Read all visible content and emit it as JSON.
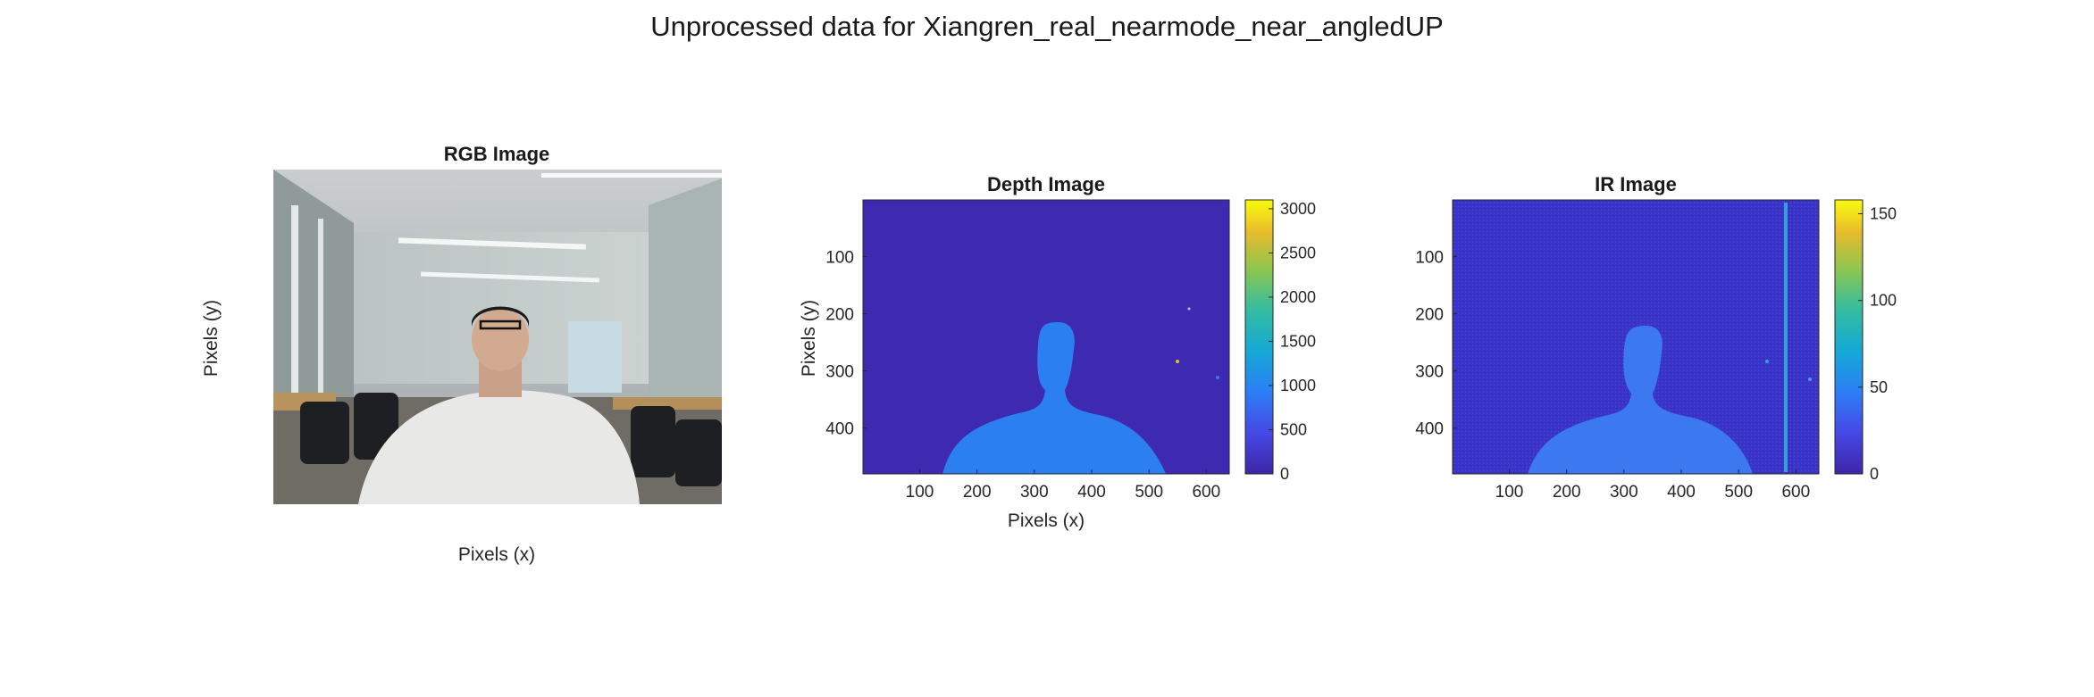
{
  "figure_title": "Unprocessed data for Xiangren_real_nearmode_near_angledUP",
  "chart_data": [
    {
      "type": "image",
      "title": "RGB Image",
      "xlabel": "Pixels (x)",
      "ylabel": "Pixels (y)",
      "content": "photo of a person looking upward in an office room with chairs and ceiling lights"
    },
    {
      "type": "heatmap",
      "title": "Depth Image",
      "xlabel": "Pixels (x)",
      "ylabel": "Pixels (y)",
      "xlim": [
        1,
        640
      ],
      "ylim": [
        1,
        480
      ],
      "xticks": [
        100,
        200,
        300,
        400,
        500,
        600
      ],
      "yticks": [
        100,
        200,
        300,
        400
      ],
      "colorbar": {
        "clim": [
          0,
          3100
        ],
        "ticks": [
          0,
          500,
          1000,
          1500,
          2000,
          2500,
          3000
        ],
        "colormap": "parula"
      },
      "background_value": 0,
      "subject_value": 1000,
      "colors": {
        "background": "#3e2ab0",
        "subject": "#2b7ff0",
        "outlier": "#e6c02a"
      }
    },
    {
      "type": "heatmap",
      "title": "IR Image",
      "xlabel": "",
      "ylabel": "",
      "xlim": [
        1,
        640
      ],
      "ylim": [
        1,
        480
      ],
      "xticks": [
        100,
        200,
        300,
        400,
        500,
        600
      ],
      "yticks": [
        100,
        200,
        300,
        400
      ],
      "colorbar": {
        "clim": [
          0,
          158
        ],
        "ticks": [
          0,
          50,
          100,
          150
        ],
        "colormap": "parula"
      },
      "background_value": 10,
      "subject_value": 40,
      "colors": {
        "background": "#3a35c8",
        "subject": "#3c78f0",
        "stripe": "#2fa0d8"
      }
    }
  ]
}
